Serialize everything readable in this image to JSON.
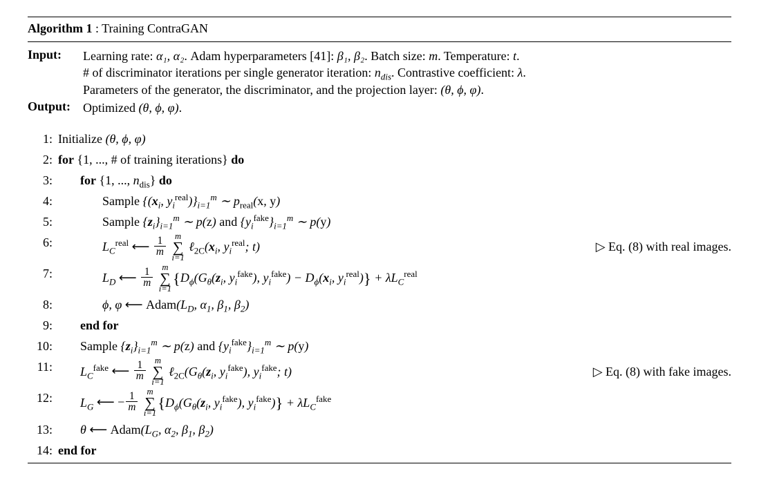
{
  "algorithm": {
    "number": "Algorithm 1",
    "title": ": Training ContraGAN"
  },
  "input": {
    "label": "Input:",
    "line1_a": "Learning rate: ",
    "line1_b": ". Adam hyperparameters [41]: ",
    "line1_c": ". Batch size: ",
    "line1_d": ". Temperature: ",
    "line2_a": "# of discriminator iterations per single generator iteration: ",
    "line2_b": ". Contrastive coefficient: ",
    "line3_a": "Parameters of the generator, the discriminator, and the projection layer: ",
    "alpha12": "α₁, α₂",
    "beta12": "β₁, β₂",
    "m": "m",
    "t": "t",
    "ndis": "n",
    "ndis_sub": "dis",
    "lambda": "λ",
    "params": "(θ, ϕ, φ)"
  },
  "output": {
    "label": "Output:",
    "text": "Optimized ",
    "params": "(θ, ϕ, φ)",
    "dot": "."
  },
  "comments": {
    "real": "Eq. (8) with real images.",
    "fake": "Eq. (8) with fake images.",
    "triangle": "▷"
  },
  "kw": {
    "for": "for",
    "do": "do",
    "endfor": "end for"
  },
  "step1": {
    "n": "1:",
    "text": "Initialize ",
    "params": "(θ, ϕ, φ)"
  },
  "step2": {
    "n": "2:",
    "a": "{1, ..., # of training iterations}"
  },
  "step3": {
    "n": "3:",
    "a": "{1, ..., ",
    "b": "}"
  },
  "step4": {
    "n": "4:",
    "a": "Sample "
  },
  "step5": {
    "n": "5:",
    "a": "Sample ",
    "and": " and "
  },
  "step6": {
    "n": "6:"
  },
  "step7": {
    "n": "7:"
  },
  "step8": {
    "n": "8:",
    "adam": "Adam"
  },
  "step9": {
    "n": "9:"
  },
  "step10": {
    "n": "10:",
    "a": "Sample ",
    "and": " and "
  },
  "step11": {
    "n": "11:"
  },
  "step12": {
    "n": "12:"
  },
  "step13": {
    "n": "13:",
    "adam": "Adam"
  },
  "step14": {
    "n": "14:"
  }
}
